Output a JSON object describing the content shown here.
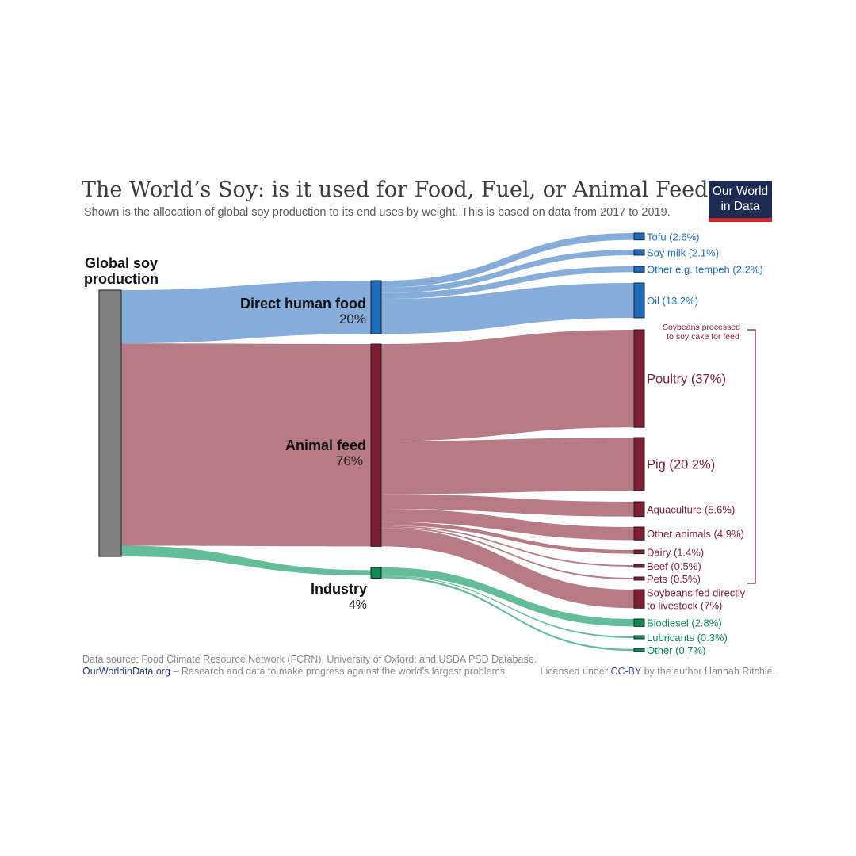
{
  "header": {
    "title": "The World’s Soy: is it used for Food, Fuel, or Animal Feed?",
    "subtitle": "Shown is the allocation of global soy production  to its end uses by weight. This is based on data from 2017 to 2019.",
    "logo_line1": "Our World",
    "logo_line2": "in Data"
  },
  "footer": {
    "source": "Data source: Food Climate Resource Network (FCRN), University of Oxford; and USDA PSD Database.",
    "site": "OurWorldinData.org",
    "tagline": " – Research and data to make progress against the world’s largest problems.",
    "license_prefix": "Licensed under ",
    "license": "CC-BY",
    "license_suffix": " by the author Hannah Ritchie."
  },
  "colors": {
    "food": "#1d6dbd",
    "food_flow": "#86acd9",
    "feed": "#7d1f33",
    "feed_flow": "#b67b85",
    "industry": "#0f8a52",
    "industry_flow": "#62bd98",
    "source": "#808080"
  },
  "chart_data": {
    "type": "sankey",
    "source": {
      "label_line1": "Global soy",
      "label_line2": "production",
      "value": 100
    },
    "groups": [
      {
        "key": "food",
        "name": "Direct human food",
        "pct_label": "20%",
        "value": 20
      },
      {
        "key": "feed",
        "name": "Animal feed",
        "pct_label": "76%",
        "value": 76
      },
      {
        "key": "industry",
        "name": "Industry",
        "pct_label": "4%",
        "value": 4
      }
    ],
    "targets": [
      {
        "group": "food",
        "label": "Tofu (2.6%)",
        "value": 2.6
      },
      {
        "group": "food",
        "label": "Soy milk (2.1%)",
        "value": 2.1
      },
      {
        "group": "food",
        "label": "Other e.g. tempeh (2.2%)",
        "value": 2.2
      },
      {
        "group": "food",
        "label": "Oil (13.2%)",
        "value": 13.2
      },
      {
        "group": "feed",
        "label": "Poultry (37%)",
        "value": 37,
        "large": true
      },
      {
        "group": "feed",
        "label": "Pig (20.2%)",
        "value": 20.2,
        "large": true
      },
      {
        "group": "feed",
        "label": "Aquaculture (5.6%)",
        "value": 5.6
      },
      {
        "group": "feed",
        "label": "Other animals (4.9%)",
        "value": 4.9
      },
      {
        "group": "feed",
        "label": "Dairy (1.4%)",
        "value": 1.4
      },
      {
        "group": "feed",
        "label": "Beef (0.5%)",
        "value": 0.5
      },
      {
        "group": "feed",
        "label": "Pets (0.5%)",
        "value": 0.5
      },
      {
        "group": "feed",
        "label": "Soybeans fed directly",
        "label2": "to livestock (7%)",
        "value": 7
      },
      {
        "group": "industry",
        "label": "Biodiesel (2.8%)",
        "value": 2.8
      },
      {
        "group": "industry",
        "label": "Lubricants (0.3%)",
        "value": 0.3
      },
      {
        "group": "industry",
        "label": "Other (0.7%)",
        "value": 0.7
      }
    ],
    "bracket_note_line1": "Soybeans processed",
    "bracket_note_line2": "to soy cake for feed"
  }
}
